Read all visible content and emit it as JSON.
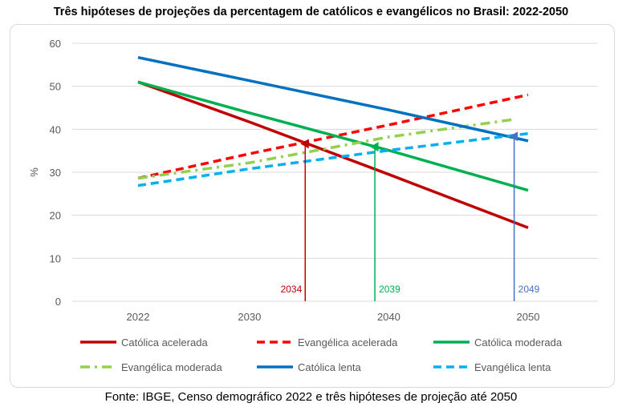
{
  "chart_data": {
    "type": "line",
    "title": "Três hipóteses de projeções da percentagem de católicos e evangélicos no Brasil: 2022-2050",
    "ylabel": "%",
    "xlabel": "",
    "xlim": [
      2017,
      2054
    ],
    "ylim": [
      0,
      60
    ],
    "x_ticks": [
      2022,
      2030,
      2040,
      2050
    ],
    "y_ticks": [
      0,
      10,
      20,
      30,
      40,
      50,
      60
    ],
    "grid": "horizontal",
    "legend": "bottom",
    "series": [
      {
        "name": "Católica acelerada",
        "color": "#c00000",
        "dash": "solid",
        "x": [
          2022,
          2030,
          2040,
          2050
        ],
        "values": [
          51.0,
          41.7,
          29.5,
          17.1
        ]
      },
      {
        "name": "Evangélica acelerada",
        "color": "#ff0000",
        "dash": "dash",
        "x": [
          2022,
          2030,
          2040,
          2050
        ],
        "values": [
          28.6,
          34.3,
          41.0,
          48.0
        ]
      },
      {
        "name": "Católica moderada",
        "color": "#00b050",
        "dash": "solid",
        "x": [
          2022,
          2030,
          2040,
          2050
        ],
        "values": [
          51.0,
          43.8,
          35.1,
          25.8
        ]
      },
      {
        "name": "Evangélica moderada",
        "color": "#92d050",
        "dash": "dashdot",
        "x": [
          2022,
          2030,
          2040,
          2049
        ],
        "values": [
          28.6,
          32.2,
          38.2,
          42.3
        ]
      },
      {
        "name": "Católica lenta",
        "color": "#0070c0",
        "dash": "solid",
        "x": [
          2022,
          2030,
          2040,
          2050
        ],
        "values": [
          56.7,
          51.3,
          44.5,
          37.3
        ]
      },
      {
        "name": "Evangélica lenta",
        "color": "#00b0f0",
        "dash": "dash",
        "x": [
          2022,
          2030,
          2040,
          2050
        ],
        "values": [
          26.9,
          30.8,
          35.1,
          39.0
        ]
      }
    ],
    "annotations": [
      {
        "label": "2034",
        "x": 2034,
        "y": 37.0,
        "color": "#c00000"
      },
      {
        "label": "2039",
        "x": 2039,
        "y": 36.3,
        "color": "#00b050"
      },
      {
        "label": "2049",
        "x": 2049,
        "y": 38.7,
        "color": "#4472c4"
      }
    ]
  },
  "source": "Fonte: IBGE, Censo demográfico 2022 e três hipóteses de projeção até 2050"
}
